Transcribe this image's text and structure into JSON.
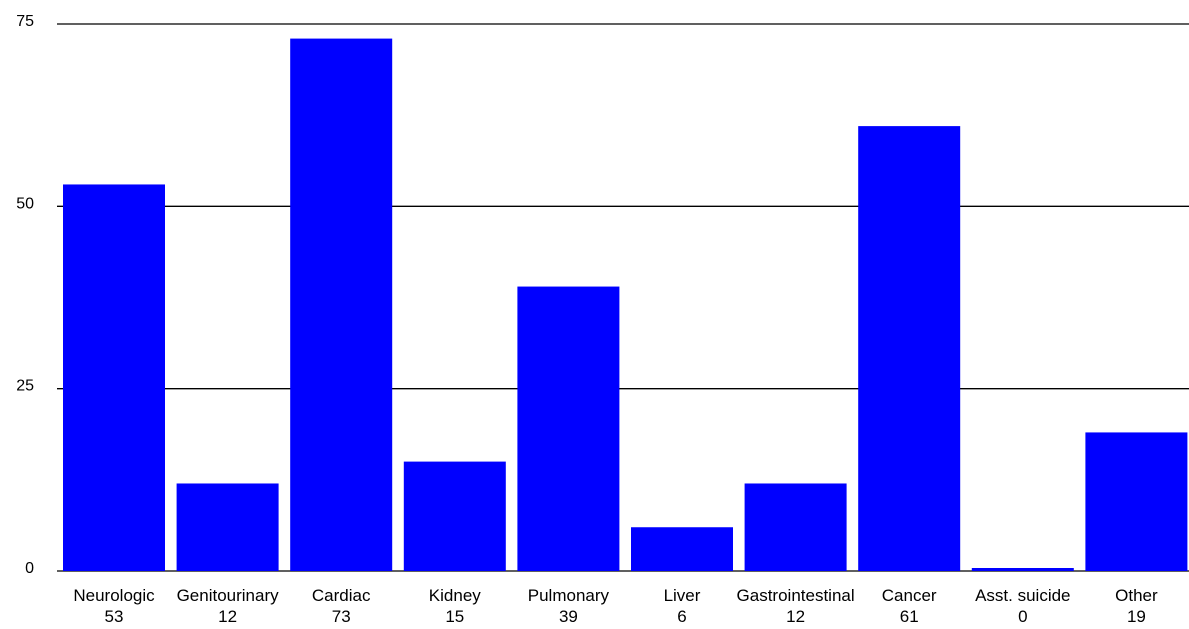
{
  "chart_data": {
    "type": "bar",
    "categories": [
      "Neurologic",
      "Genitourinary",
      "Cardiac",
      "Kidney",
      "Pulmonary",
      "Liver",
      "Gastrointestinal",
      "Cancer",
      "Asst. suicide",
      "Other"
    ],
    "values": [
      53,
      12,
      73,
      15,
      39,
      6,
      12,
      61,
      0,
      19
    ],
    "value_labels": [
      "53",
      "12",
      "73",
      "15",
      "39",
      "6",
      "12",
      "61",
      "0",
      "19"
    ],
    "ylim": [
      0,
      75
    ],
    "yticks": [
      0,
      25,
      50,
      75
    ],
    "ytick_labels": [
      "0",
      "25",
      "50",
      "75"
    ],
    "grid": true,
    "legend": "none",
    "bar_color": "#0000ff",
    "title": "",
    "xlabel": "",
    "ylabel": ""
  }
}
